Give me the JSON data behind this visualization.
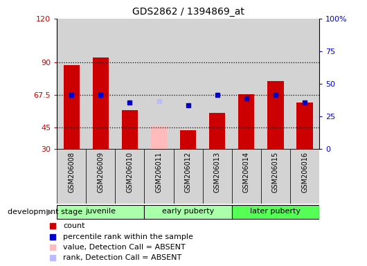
{
  "title": "GDS2862 / 1394869_at",
  "samples": [
    "GSM206008",
    "GSM206009",
    "GSM206010",
    "GSM206011",
    "GSM206012",
    "GSM206013",
    "GSM206014",
    "GSM206015",
    "GSM206016"
  ],
  "bar_values": [
    88,
    93,
    57,
    null,
    43,
    55,
    68,
    77,
    62
  ],
  "absent_bar_value": 46,
  "absent_bar_index": 3,
  "rank_values": [
    67.5,
    67.5,
    62,
    null,
    60,
    67.5,
    65,
    67.5,
    62
  ],
  "rank_absent_value": 63,
  "rank_absent_index": 3,
  "bar_color": "#cc0000",
  "absent_bar_color": "#ffbbbb",
  "rank_dot_color": "#0000cc",
  "rank_absent_dot_color": "#bbbbff",
  "ylim_left": [
    30,
    120
  ],
  "ylim_right": [
    0,
    100
  ],
  "yticks_left": [
    30,
    45,
    67.5,
    90,
    120
  ],
  "ytick_labels_left": [
    "30",
    "45",
    "67.5",
    "90",
    "120"
  ],
  "yticks_right": [
    0,
    25,
    50,
    75,
    100
  ],
  "ytick_labels_right": [
    "0",
    "25",
    "50",
    "75",
    "100%"
  ],
  "hlines": [
    45,
    67.5,
    90
  ],
  "group_colors": [
    "#aaffaa",
    "#aaffaa",
    "#55ff55"
  ],
  "group_labels": [
    "juvenile",
    "early puberty",
    "later puberty"
  ],
  "group_boundaries": [
    0,
    3,
    6,
    9
  ],
  "dev_stage_label": "development stage",
  "legend_items": [
    {
      "label": "count",
      "color": "#cc0000"
    },
    {
      "label": "percentile rank within the sample",
      "color": "#0000cc"
    },
    {
      "label": "value, Detection Call = ABSENT",
      "color": "#ffbbbb"
    },
    {
      "label": "rank, Detection Call = ABSENT",
      "color": "#bbbbff"
    }
  ],
  "bar_width": 0.55,
  "bar_bottom": 30,
  "tick_label_color_left": "#cc0000",
  "tick_label_color_right": "#0000cc",
  "col_bg_color": "#d3d3d3"
}
